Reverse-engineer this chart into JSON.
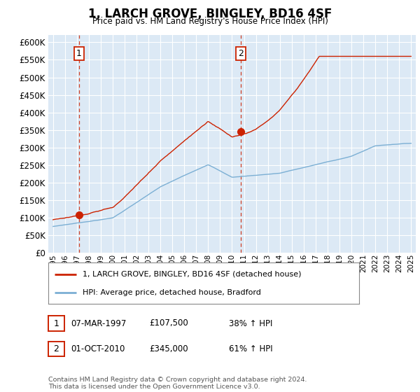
{
  "title": "1, LARCH GROVE, BINGLEY, BD16 4SF",
  "subtitle": "Price paid vs. HM Land Registry's House Price Index (HPI)",
  "bg_color": "#dce9f5",
  "red_line_color": "#cc2200",
  "blue_line_color": "#7bafd4",
  "sale1_date_num": 1997.18,
  "sale1_price": 107500,
  "sale2_date_num": 2010.75,
  "sale2_price": 345000,
  "ylim": [
    0,
    620000
  ],
  "yticks": [
    0,
    50000,
    100000,
    150000,
    200000,
    250000,
    300000,
    350000,
    400000,
    450000,
    500000,
    550000,
    600000
  ],
  "xlim_start": 1994.6,
  "xlim_end": 2025.4,
  "xticks": [
    1995,
    1996,
    1997,
    1998,
    1999,
    2000,
    2001,
    2002,
    2003,
    2004,
    2005,
    2006,
    2007,
    2008,
    2009,
    2010,
    2011,
    2012,
    2013,
    2014,
    2015,
    2016,
    2017,
    2018,
    2019,
    2020,
    2021,
    2022,
    2023,
    2024,
    2025
  ],
  "legend_house_label": "1, LARCH GROVE, BINGLEY, BD16 4SF (detached house)",
  "legend_hpi_label": "HPI: Average price, detached house, Bradford",
  "annotation1_label": "1",
  "annotation1_date": "07-MAR-1997",
  "annotation1_price": "£107,500",
  "annotation1_pct": "38% ↑ HPI",
  "annotation2_label": "2",
  "annotation2_date": "01-OCT-2010",
  "annotation2_price": "£345,000",
  "annotation2_pct": "61% ↑ HPI",
  "footer": "Contains HM Land Registry data © Crown copyright and database right 2024.\nThis data is licensed under the Open Government Licence v3.0."
}
